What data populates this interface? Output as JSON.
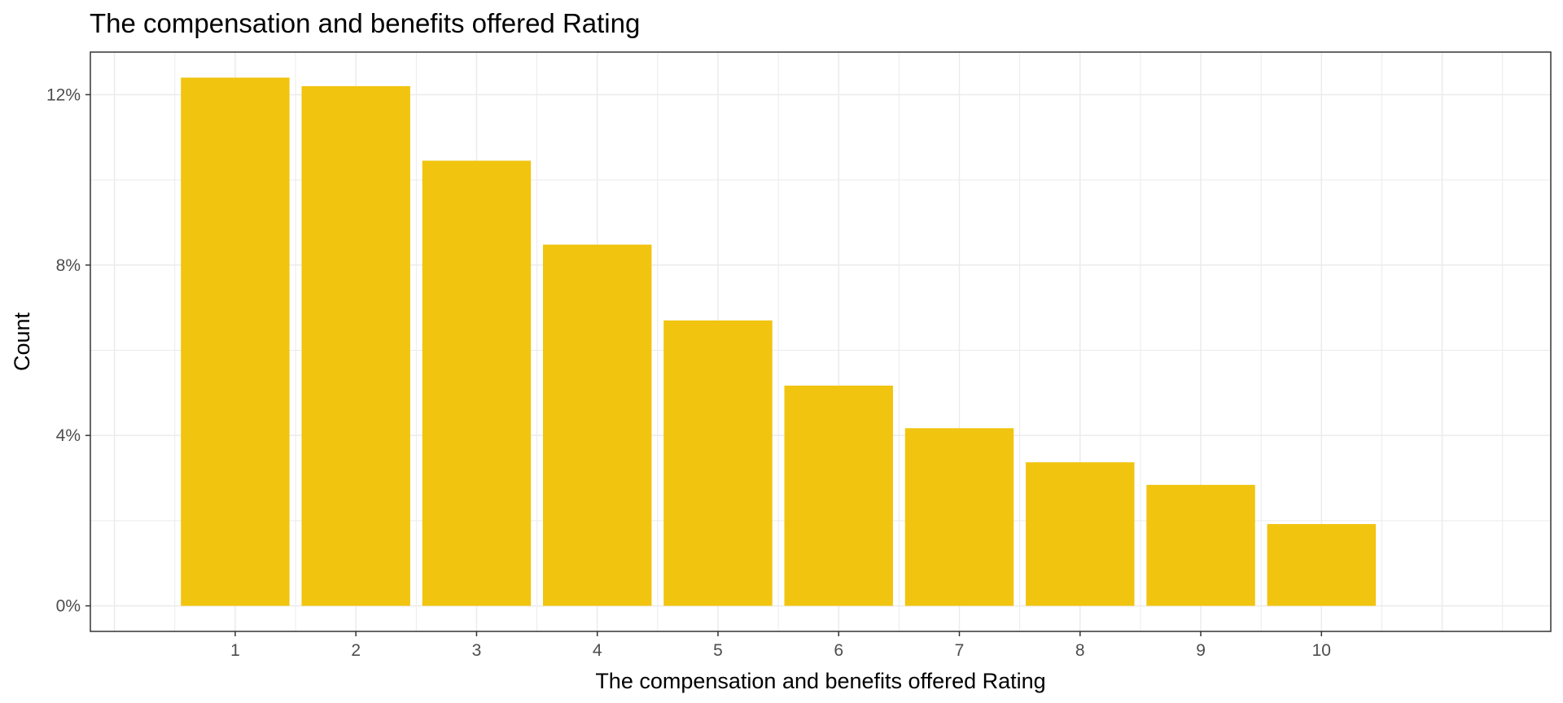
{
  "chart_data": {
    "type": "bar",
    "title": "The compensation and benefits offered Rating",
    "xlabel": "The compensation and benefits offered Rating",
    "ylabel": "Count",
    "categories": [
      "1",
      "2",
      "3",
      "4",
      "5",
      "6",
      "7",
      "8",
      "9",
      "10"
    ],
    "values": [
      12.4,
      12.2,
      10.45,
      8.48,
      6.7,
      5.17,
      4.17,
      3.37,
      2.84,
      1.92
    ],
    "y_unit": "%",
    "ylim": [
      -0.6,
      13.0
    ],
    "xlim": [
      -0.2,
      11.9
    ],
    "y_ticks": [
      "0%",
      "4%",
      "8%",
      "12%"
    ],
    "y_tick_values": [
      0,
      4,
      8,
      12
    ],
    "y_minor_values": [
      2,
      6,
      10
    ],
    "grid": true,
    "legend": "none",
    "colors": {
      "bar": "#F1C40F",
      "grid": "#ebebeb",
      "panel_border": "#333333",
      "tick_text": "#4d4d4d",
      "text": "#000000"
    }
  }
}
